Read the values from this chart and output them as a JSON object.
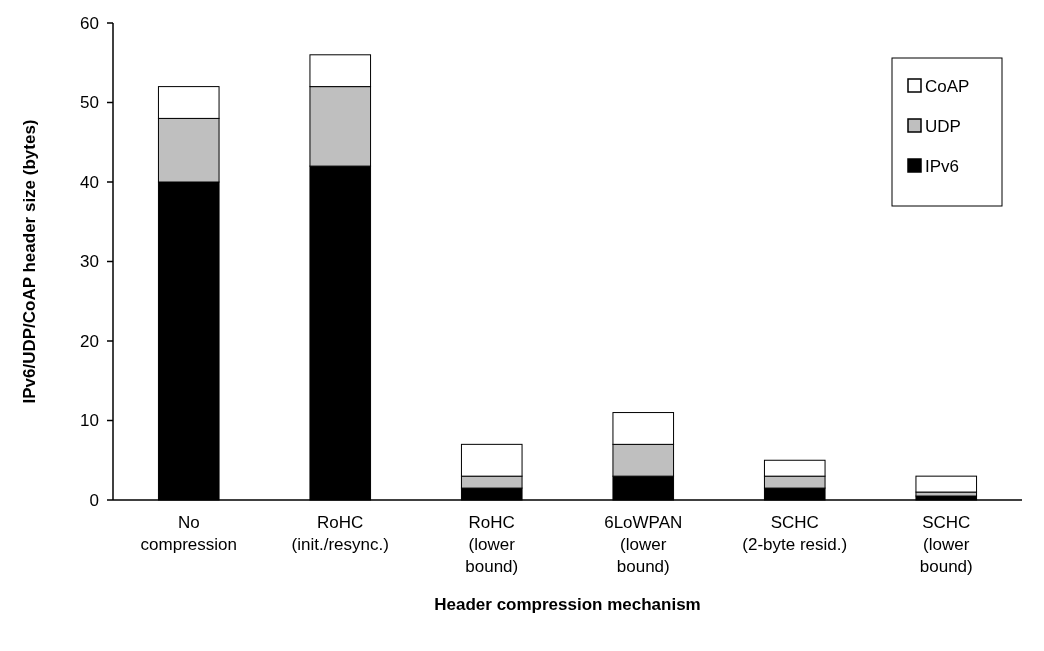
{
  "chart_data": {
    "type": "bar",
    "stacked": true,
    "xlabel": "Header compression mechanism",
    "ylabel": "IPv6/UDP/CoAP header size (bytes)",
    "categories": [
      "No\ncompression",
      "RoHC\n(init./resync.)",
      "RoHC\n(lower\nbound)",
      "6LoWPAN\n(lower\nbound)",
      "SCHC\n(2-byte resid.)",
      "SCHC\n(lower\nbound)"
    ],
    "series": [
      {
        "name": "IPv6",
        "color": "#000000",
        "values": [
          40,
          42,
          1.5,
          3,
          1.5,
          0.5
        ]
      },
      {
        "name": "UDP",
        "color": "#bfbfbf",
        "values": [
          8,
          10,
          1.5,
          4,
          1.5,
          0.5
        ]
      },
      {
        "name": "CoAP",
        "color": "#ffffff",
        "values": [
          4,
          4,
          4,
          4,
          2,
          2
        ]
      }
    ],
    "ylim": [
      0,
      60
    ],
    "yticks": [
      0,
      10,
      20,
      30,
      40,
      50,
      60
    ],
    "grid": false,
    "legend": "top right"
  }
}
